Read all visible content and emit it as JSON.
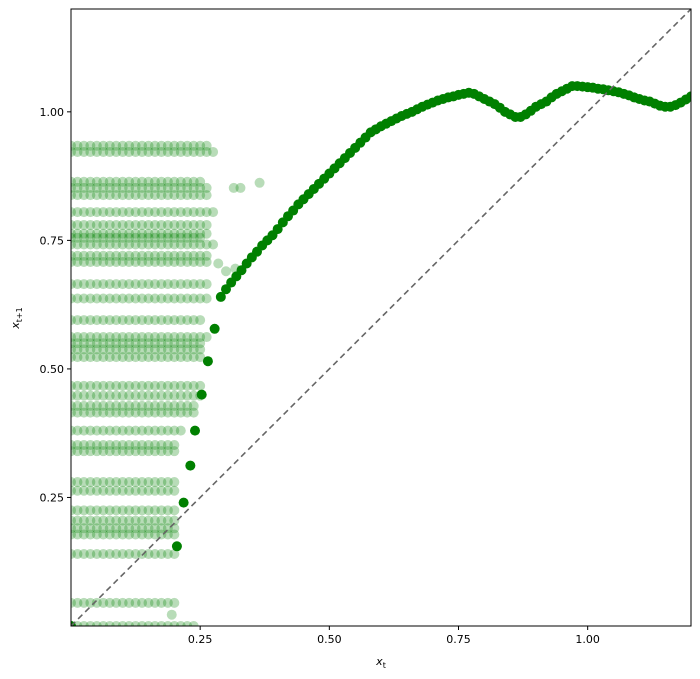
{
  "chart_data": {
    "type": "scatter",
    "title": "",
    "xlabel": "x_t",
    "ylabel": "x_{t+1}",
    "xlim": [
      0,
      1.2
    ],
    "ylim": [
      0,
      1.2
    ],
    "grid": false,
    "xticks": [
      {
        "value": 0.25,
        "label": "0.25"
      },
      {
        "value": 0.5,
        "label": "0.50"
      },
      {
        "value": 0.75,
        "label": "0.75"
      },
      {
        "value": 1.0,
        "label": "1.00"
      }
    ],
    "yticks": [
      {
        "value": 0.25,
        "label": "0.25"
      },
      {
        "value": 0.5,
        "label": "0.50"
      },
      {
        "value": 0.75,
        "label": "0.75"
      },
      {
        "value": 1.0,
        "label": "1.00"
      }
    ],
    "colors": {
      "points": "#008000",
      "diagonal": "#666666"
    },
    "diagonal": {
      "style": "dashed",
      "from": [
        0,
        0
      ],
      "to": [
        1.2,
        1.2
      ]
    },
    "faint_series": {
      "alpha": 0.28,
      "rows": [
        {
          "y": 0.934,
          "x_min": 0.0,
          "x_max": 0.27,
          "step": 0.0125
        },
        {
          "y": 0.922,
          "x_min": 0.0,
          "x_max": 0.28,
          "step": 0.0125
        },
        {
          "y": 0.864,
          "x_min": 0.0,
          "x_max": 0.26,
          "step": 0.0125
        },
        {
          "y": 0.852,
          "x_min": 0.0,
          "x_max": 0.27,
          "step": 0.0125
        },
        {
          "y": 0.838,
          "x_min": 0.0,
          "x_max": 0.27,
          "step": 0.0125
        },
        {
          "y": 0.805,
          "x_min": 0.0,
          "x_max": 0.28,
          "step": 0.0125
        },
        {
          "y": 0.78,
          "x_min": 0.0,
          "x_max": 0.27,
          "step": 0.0125
        },
        {
          "y": 0.763,
          "x_min": 0.0,
          "x_max": 0.27,
          "step": 0.0125
        },
        {
          "y": 0.755,
          "x_min": 0.0,
          "x_max": 0.26,
          "step": 0.0125
        },
        {
          "y": 0.742,
          "x_min": 0.0,
          "x_max": 0.28,
          "step": 0.0125
        },
        {
          "y": 0.72,
          "x_min": 0.0,
          "x_max": 0.27,
          "step": 0.0125
        },
        {
          "y": 0.708,
          "x_min": 0.0,
          "x_max": 0.27,
          "step": 0.0125
        },
        {
          "y": 0.665,
          "x_min": 0.0,
          "x_max": 0.27,
          "step": 0.0125
        },
        {
          "y": 0.637,
          "x_min": 0.0,
          "x_max": 0.27,
          "step": 0.0125
        },
        {
          "y": 0.595,
          "x_min": 0.0,
          "x_max": 0.26,
          "step": 0.0125
        },
        {
          "y": 0.562,
          "x_min": 0.0,
          "x_max": 0.27,
          "step": 0.0125
        },
        {
          "y": 0.55,
          "x_min": 0.0,
          "x_max": 0.26,
          "step": 0.0125
        },
        {
          "y": 0.538,
          "x_min": 0.0,
          "x_max": 0.26,
          "step": 0.0125
        },
        {
          "y": 0.523,
          "x_min": 0.0,
          "x_max": 0.26,
          "step": 0.0125
        },
        {
          "y": 0.467,
          "x_min": 0.0,
          "x_max": 0.26,
          "step": 0.0125
        },
        {
          "y": 0.448,
          "x_min": 0.0,
          "x_max": 0.25,
          "step": 0.0125
        },
        {
          "y": 0.428,
          "x_min": 0.0,
          "x_max": 0.24,
          "step": 0.0125
        },
        {
          "y": 0.415,
          "x_min": 0.0,
          "x_max": 0.24,
          "step": 0.0125
        },
        {
          "y": 0.38,
          "x_min": 0.0,
          "x_max": 0.22,
          "step": 0.0125
        },
        {
          "y": 0.352,
          "x_min": 0.0,
          "x_max": 0.21,
          "step": 0.0125
        },
        {
          "y": 0.34,
          "x_min": 0.0,
          "x_max": 0.21,
          "step": 0.0125
        },
        {
          "y": 0.28,
          "x_min": 0.0,
          "x_max": 0.21,
          "step": 0.0125
        },
        {
          "y": 0.263,
          "x_min": 0.0,
          "x_max": 0.21,
          "step": 0.0125
        },
        {
          "y": 0.225,
          "x_min": 0.0,
          "x_max": 0.21,
          "step": 0.0125
        },
        {
          "y": 0.205,
          "x_min": 0.0,
          "x_max": 0.2,
          "step": 0.0125
        },
        {
          "y": 0.19,
          "x_min": 0.0,
          "x_max": 0.2,
          "step": 0.0125
        },
        {
          "y": 0.178,
          "x_min": 0.0,
          "x_max": 0.2,
          "step": 0.0125
        },
        {
          "y": 0.14,
          "x_min": 0.0,
          "x_max": 0.2,
          "step": 0.0125
        },
        {
          "y": 0.045,
          "x_min": 0.0,
          "x_max": 0.2,
          "step": 0.0125
        },
        {
          "y": 0.0,
          "x_min": 0.0,
          "x_max": 0.24,
          "step": 0.0125
        }
      ],
      "extra_points": [
        {
          "x": 0.315,
          "y": 0.852
        },
        {
          "x": 0.328,
          "y": 0.852
        },
        {
          "x": 0.365,
          "y": 0.862
        },
        {
          "x": 0.3,
          "y": 0.69
        },
        {
          "x": 0.318,
          "y": 0.695
        },
        {
          "x": 0.285,
          "y": 0.705
        },
        {
          "x": 0.195,
          "y": 0.022
        }
      ]
    },
    "main_series": {
      "alpha": 1.0,
      "points": [
        {
          "x": 0.0,
          "y": 0.0
        },
        {
          "x": 0.205,
          "y": 0.155
        },
        {
          "x": 0.218,
          "y": 0.24
        },
        {
          "x": 0.231,
          "y": 0.312
        },
        {
          "x": 0.24,
          "y": 0.38
        },
        {
          "x": 0.253,
          "y": 0.45
        },
        {
          "x": 0.265,
          "y": 0.515
        },
        {
          "x": 0.278,
          "y": 0.578
        },
        {
          "x": 0.29,
          "y": 0.64
        },
        {
          "x": 0.3,
          "y": 0.655
        },
        {
          "x": 0.31,
          "y": 0.668
        },
        {
          "x": 0.32,
          "y": 0.68
        },
        {
          "x": 0.33,
          "y": 0.692
        },
        {
          "x": 0.34,
          "y": 0.705
        },
        {
          "x": 0.35,
          "y": 0.717
        },
        {
          "x": 0.36,
          "y": 0.728
        },
        {
          "x": 0.37,
          "y": 0.74
        },
        {
          "x": 0.38,
          "y": 0.75
        },
        {
          "x": 0.39,
          "y": 0.76
        },
        {
          "x": 0.4,
          "y": 0.772
        },
        {
          "x": 0.41,
          "y": 0.785
        },
        {
          "x": 0.42,
          "y": 0.797
        },
        {
          "x": 0.43,
          "y": 0.808
        },
        {
          "x": 0.44,
          "y": 0.82
        },
        {
          "x": 0.45,
          "y": 0.83
        },
        {
          "x": 0.46,
          "y": 0.84
        },
        {
          "x": 0.47,
          "y": 0.85
        },
        {
          "x": 0.48,
          "y": 0.86
        },
        {
          "x": 0.49,
          "y": 0.87
        },
        {
          "x": 0.5,
          "y": 0.88
        },
        {
          "x": 0.51,
          "y": 0.89
        },
        {
          "x": 0.52,
          "y": 0.9
        },
        {
          "x": 0.53,
          "y": 0.91
        },
        {
          "x": 0.54,
          "y": 0.92
        },
        {
          "x": 0.55,
          "y": 0.93
        },
        {
          "x": 0.56,
          "y": 0.94
        },
        {
          "x": 0.57,
          "y": 0.95
        },
        {
          "x": 0.58,
          "y": 0.96
        },
        {
          "x": 0.59,
          "y": 0.966
        },
        {
          "x": 0.6,
          "y": 0.972
        },
        {
          "x": 0.61,
          "y": 0.977
        },
        {
          "x": 0.62,
          "y": 0.982
        },
        {
          "x": 0.63,
          "y": 0.987
        },
        {
          "x": 0.64,
          "y": 0.992
        },
        {
          "x": 0.65,
          "y": 0.996
        },
        {
          "x": 0.66,
          "y": 1.0
        },
        {
          "x": 0.67,
          "y": 1.005
        },
        {
          "x": 0.68,
          "y": 1.01
        },
        {
          "x": 0.69,
          "y": 1.014
        },
        {
          "x": 0.7,
          "y": 1.018
        },
        {
          "x": 0.71,
          "y": 1.022
        },
        {
          "x": 0.72,
          "y": 1.025
        },
        {
          "x": 0.73,
          "y": 1.028
        },
        {
          "x": 0.74,
          "y": 1.03
        },
        {
          "x": 0.75,
          "y": 1.033
        },
        {
          "x": 0.76,
          "y": 1.035
        },
        {
          "x": 0.77,
          "y": 1.037
        },
        {
          "x": 0.78,
          "y": 1.035
        },
        {
          "x": 0.79,
          "y": 1.03
        },
        {
          "x": 0.8,
          "y": 1.025
        },
        {
          "x": 0.81,
          "y": 1.02
        },
        {
          "x": 0.82,
          "y": 1.015
        },
        {
          "x": 0.83,
          "y": 1.008
        },
        {
          "x": 0.84,
          "y": 1.0
        },
        {
          "x": 0.85,
          "y": 0.995
        },
        {
          "x": 0.86,
          "y": 0.99
        },
        {
          "x": 0.87,
          "y": 0.99
        },
        {
          "x": 0.88,
          "y": 0.995
        },
        {
          "x": 0.89,
          "y": 1.002
        },
        {
          "x": 0.9,
          "y": 1.01
        },
        {
          "x": 0.91,
          "y": 1.015
        },
        {
          "x": 0.92,
          "y": 1.02
        },
        {
          "x": 0.93,
          "y": 1.028
        },
        {
          "x": 0.94,
          "y": 1.035
        },
        {
          "x": 0.95,
          "y": 1.04
        },
        {
          "x": 0.96,
          "y": 1.045
        },
        {
          "x": 0.97,
          "y": 1.05
        },
        {
          "x": 0.98,
          "y": 1.05
        },
        {
          "x": 0.99,
          "y": 1.049
        },
        {
          "x": 1.0,
          "y": 1.048
        },
        {
          "x": 1.01,
          "y": 1.047
        },
        {
          "x": 1.02,
          "y": 1.045
        },
        {
          "x": 1.03,
          "y": 1.044
        },
        {
          "x": 1.04,
          "y": 1.042
        },
        {
          "x": 1.05,
          "y": 1.04
        },
        {
          "x": 1.06,
          "y": 1.038
        },
        {
          "x": 1.07,
          "y": 1.035
        },
        {
          "x": 1.08,
          "y": 1.032
        },
        {
          "x": 1.09,
          "y": 1.028
        },
        {
          "x": 1.1,
          "y": 1.025
        },
        {
          "x": 1.11,
          "y": 1.022
        },
        {
          "x": 1.12,
          "y": 1.02
        },
        {
          "x": 1.13,
          "y": 1.016
        },
        {
          "x": 1.14,
          "y": 1.012
        },
        {
          "x": 1.15,
          "y": 1.01
        },
        {
          "x": 1.16,
          "y": 1.01
        },
        {
          "x": 1.17,
          "y": 1.013
        },
        {
          "x": 1.18,
          "y": 1.018
        },
        {
          "x": 1.19,
          "y": 1.024
        },
        {
          "x": 1.2,
          "y": 1.03
        }
      ]
    }
  }
}
